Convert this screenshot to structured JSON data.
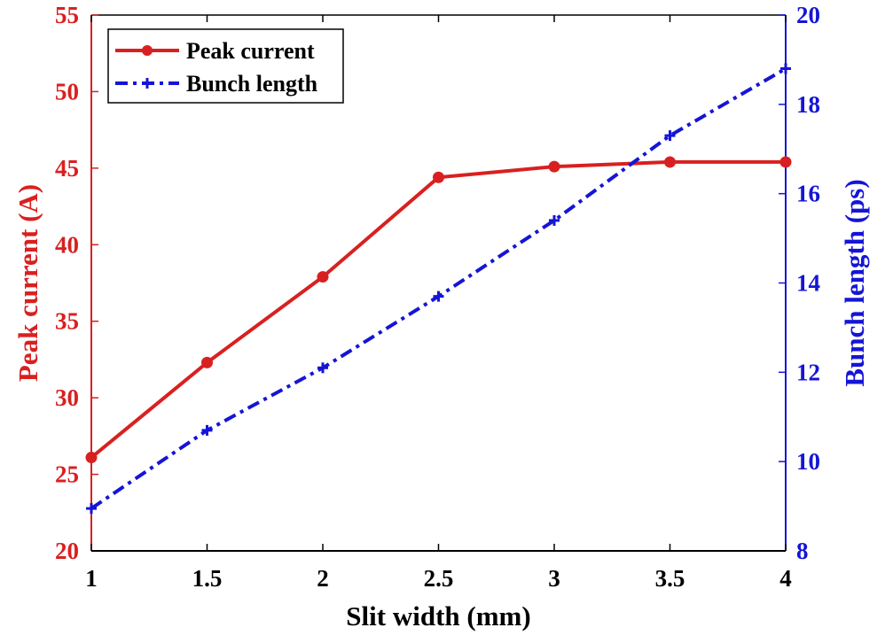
{
  "chart_data": {
    "type": "line",
    "x": [
      1,
      1.5,
      2,
      2.5,
      3,
      3.5,
      4
    ],
    "xlabel": "Slit width (mm)",
    "xlim": [
      1,
      4
    ],
    "xticks": [
      "1",
      "1.5",
      "2",
      "2.5",
      "3",
      "3.5",
      "4"
    ],
    "ylabel_left": "Peak current (A)",
    "ylim_left": [
      20,
      55
    ],
    "yticks_left": [
      "20",
      "25",
      "30",
      "35",
      "40",
      "45",
      "50",
      "55"
    ],
    "ylabel_right": "Bunch length (ps)",
    "ylim_right": [
      8,
      20
    ],
    "yticks_right": [
      "8",
      "10",
      "12",
      "14",
      "16",
      "18",
      "20"
    ],
    "grid": false,
    "legend_position": "top-left",
    "series": [
      {
        "name": "Peak current",
        "axis": "left",
        "color": "#d92020",
        "line_style": "solid",
        "marker": "circle",
        "values": [
          26.1,
          32.3,
          37.9,
          44.4,
          45.1,
          45.4,
          45.4
        ]
      },
      {
        "name": "Bunch length",
        "axis": "right",
        "color": "#1515d6",
        "line_style": "dash-dot",
        "marker": "plus",
        "values": [
          8.95,
          10.7,
          12.1,
          13.7,
          15.4,
          17.3,
          18.8
        ]
      }
    ],
    "axis_colors": {
      "left": "#d92020",
      "right": "#1515d6",
      "bottom": "#000000"
    }
  }
}
